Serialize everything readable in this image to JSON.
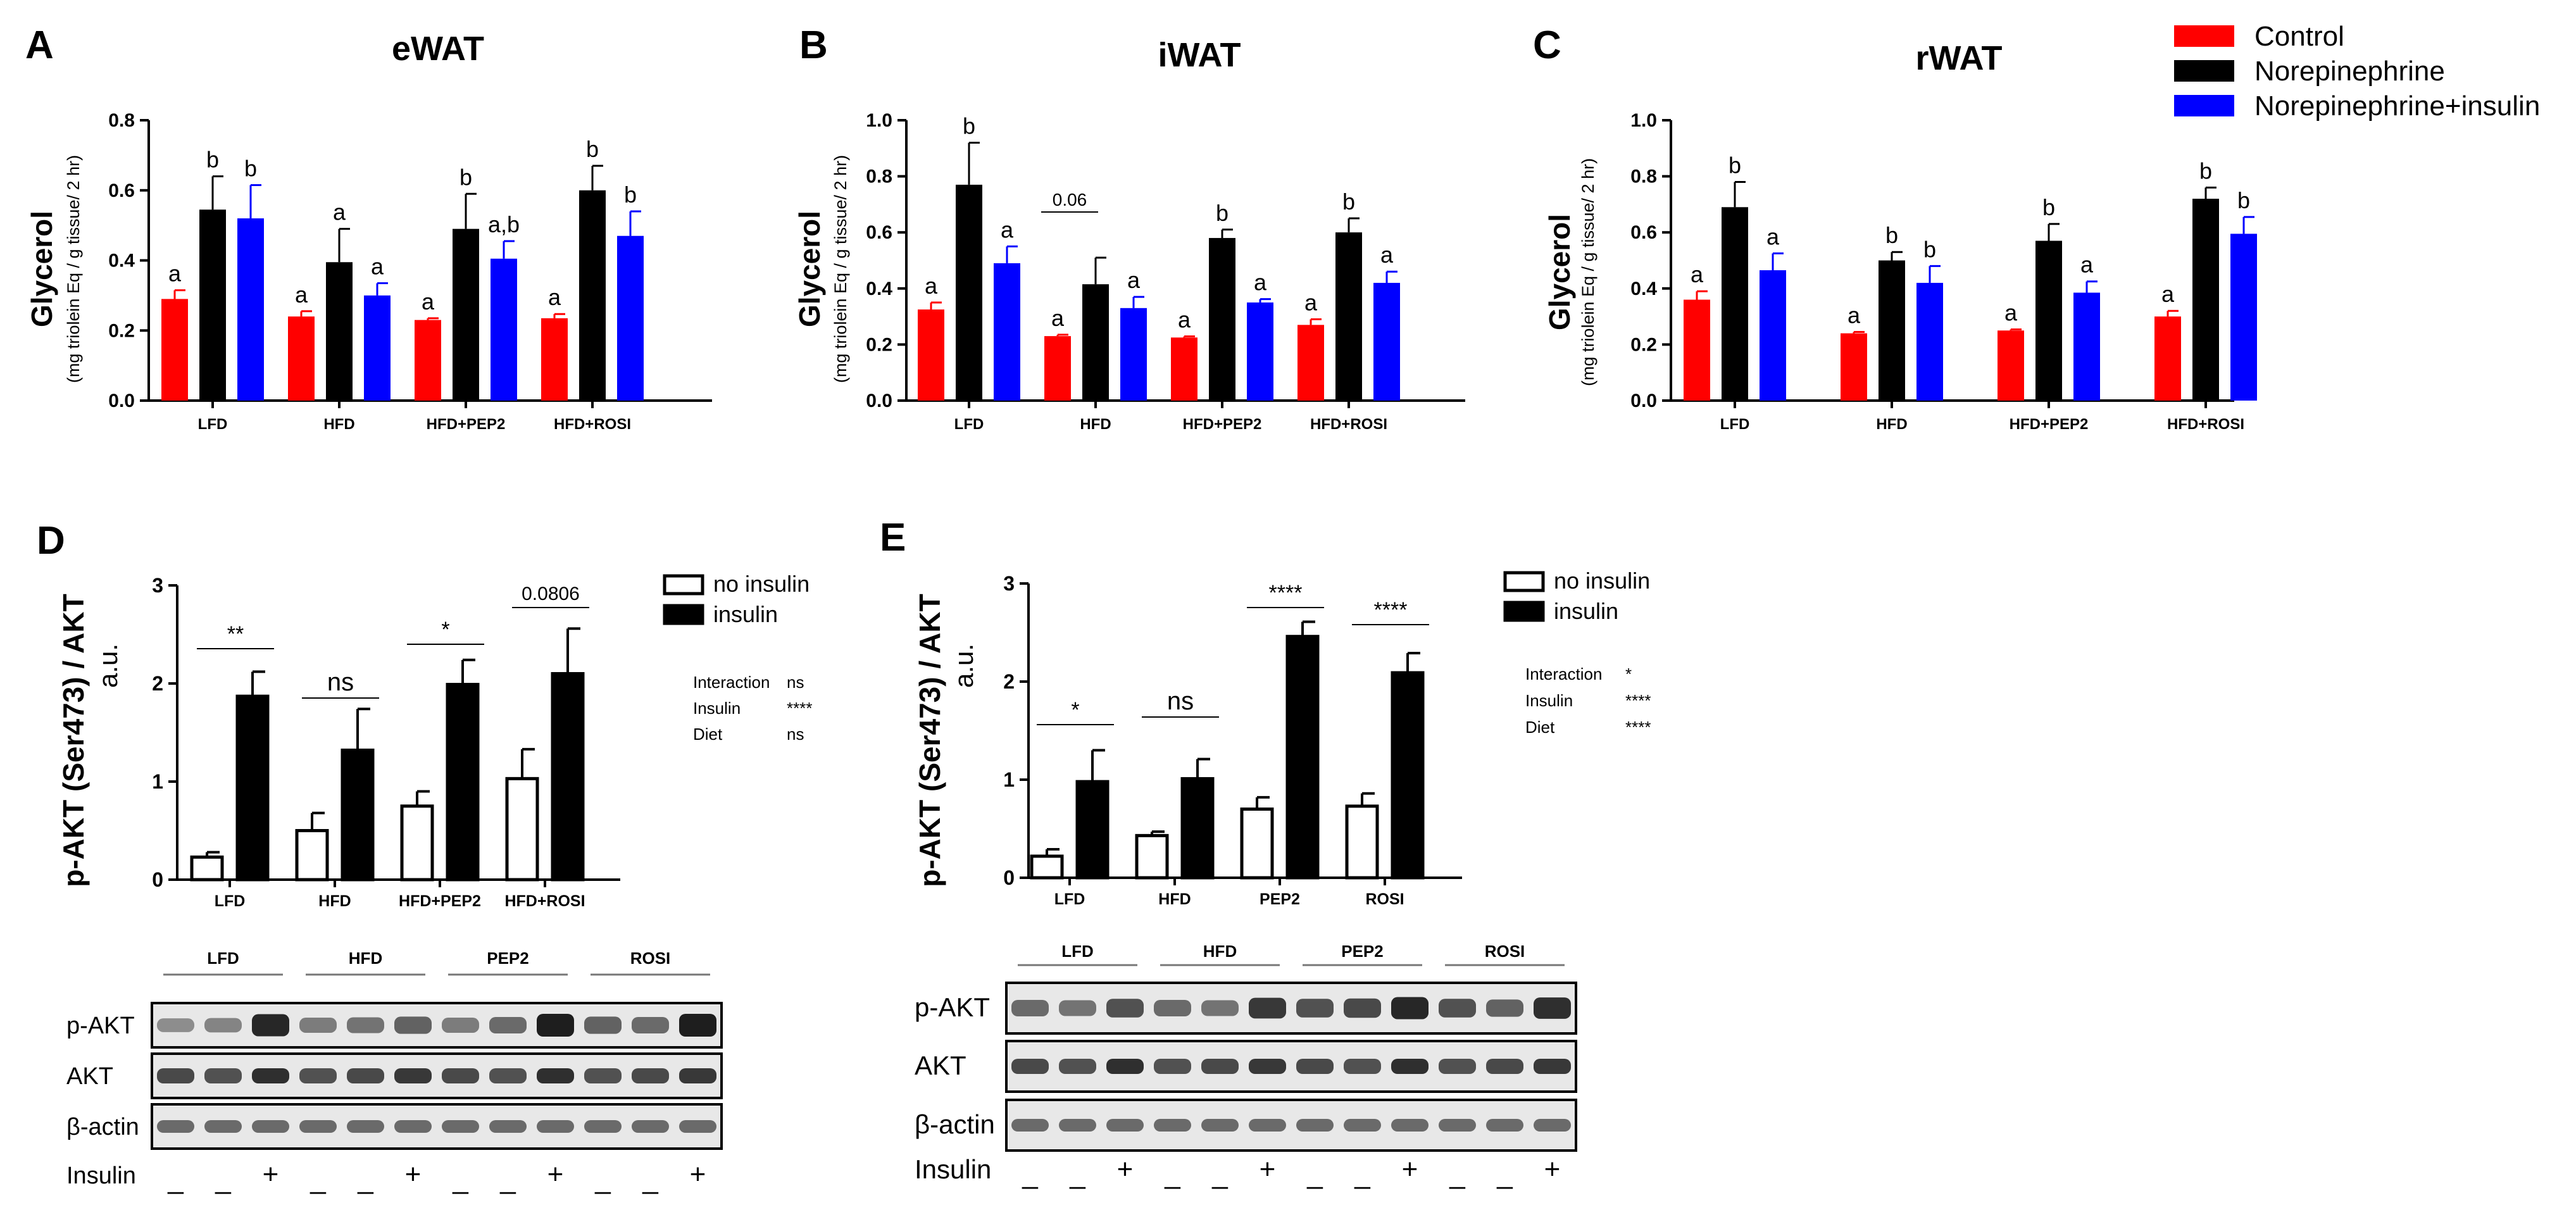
{
  "legend_top": {
    "items": [
      {
        "label": "Control",
        "color": "#ff0000"
      },
      {
        "label": "Norepinephrine",
        "color": "#000000"
      },
      {
        "label": "Norepinephrine+insulin",
        "color": "#0000ff"
      }
    ]
  },
  "chart_data": [
    {
      "panel": "A",
      "type": "bar",
      "title": "eWAT",
      "ylabel": "Glycerol",
      "ylabel_sub": "(mg triolein Eq / g tissue/ 2 hr)",
      "ylim": [
        0,
        0.8
      ],
      "yticks": [
        "0.0",
        "0.2",
        "0.4",
        "0.6",
        "0.8"
      ],
      "categories": [
        "LFD",
        "HFD",
        "HFD+PEP2",
        "HFD+ROSI"
      ],
      "series": [
        {
          "name": "Control",
          "color": "#ff0000",
          "values": [
            0.29,
            0.24,
            0.23,
            0.235
          ],
          "errors": [
            0.025,
            0.015,
            0.005,
            0.012
          ],
          "letters": [
            "a",
            "a",
            "a",
            "a"
          ]
        },
        {
          "name": "Norepinephrine",
          "color": "#000000",
          "values": [
            0.545,
            0.395,
            0.49,
            0.6
          ],
          "errors": [
            0.095,
            0.095,
            0.1,
            0.07
          ],
          "letters": [
            "b",
            "a",
            "b",
            "b"
          ]
        },
        {
          "name": "Norepinephrine+insulin",
          "color": "#0000ff",
          "values": [
            0.52,
            0.3,
            0.405,
            0.47
          ],
          "errors": [
            0.095,
            0.035,
            0.05,
            0.07
          ],
          "letters": [
            "b",
            "a",
            "a,b",
            "b"
          ]
        }
      ]
    },
    {
      "panel": "B",
      "type": "bar",
      "title": "iWAT",
      "ylabel": "Glycerol",
      "ylabel_sub": "(mg triolein Eq / g tissue/ 2 hr)",
      "ylim": [
        0,
        1.0
      ],
      "yticks": [
        "0.0",
        "0.2",
        "0.4",
        "0.6",
        "0.8",
        "1.0"
      ],
      "categories": [
        "LFD",
        "HFD",
        "HFD+PEP2",
        "HFD+ROSI"
      ],
      "annotation": {
        "text": "0.06",
        "group": 1
      },
      "series": [
        {
          "name": "Control",
          "color": "#ff0000",
          "values": [
            0.325,
            0.23,
            0.225,
            0.27
          ],
          "errors": [
            0.025,
            0.005,
            0.004,
            0.02
          ],
          "letters": [
            "a",
            "a",
            "a",
            "a"
          ]
        },
        {
          "name": "Norepinephrine",
          "color": "#000000",
          "values": [
            0.77,
            0.415,
            0.58,
            0.6
          ],
          "errors": [
            0.15,
            0.095,
            0.03,
            0.05
          ],
          "letters": [
            "b",
            "",
            "b",
            "b"
          ]
        },
        {
          "name": "Norepinephrine+insulin",
          "color": "#0000ff",
          "values": [
            0.49,
            0.33,
            0.35,
            0.42
          ],
          "errors": [
            0.06,
            0.04,
            0.012,
            0.04
          ],
          "letters": [
            "a",
            "a",
            "a",
            "a"
          ]
        }
      ]
    },
    {
      "panel": "C",
      "type": "bar",
      "title": "rWAT",
      "ylabel": "Glycerol",
      "ylabel_sub": "(mg triolein Eq / g tissue/ 2 hr)",
      "ylim": [
        0,
        1.0
      ],
      "yticks": [
        "0.0",
        "0.2",
        "0.4",
        "0.6",
        "0.8",
        "1.0"
      ],
      "categories": [
        "LFD",
        "HFD",
        "HFD+PEP2",
        "HFD+ROSI"
      ],
      "series": [
        {
          "name": "Control",
          "color": "#ff0000",
          "values": [
            0.36,
            0.24,
            0.25,
            0.3
          ],
          "errors": [
            0.03,
            0.005,
            0.004,
            0.02
          ],
          "letters": [
            "a",
            "a",
            "a",
            "a"
          ]
        },
        {
          "name": "Norepinephrine",
          "color": "#000000",
          "values": [
            0.69,
            0.5,
            0.57,
            0.72
          ],
          "errors": [
            0.09,
            0.03,
            0.06,
            0.04
          ],
          "letters": [
            "b",
            "b",
            "b",
            "b"
          ]
        },
        {
          "name": "Norepinephrine+insulin",
          "color": "#0000ff",
          "values": [
            0.465,
            0.42,
            0.385,
            0.595
          ],
          "errors": [
            0.06,
            0.06,
            0.04,
            0.06
          ],
          "letters": [
            "a",
            "b",
            "a",
            "b"
          ]
        }
      ]
    },
    {
      "panel": "D",
      "type": "bar",
      "ylabel": "p-AKT (Ser473) / AKT",
      "ylabel_sub": "a.u.",
      "ylim": [
        0,
        3
      ],
      "yticks": [
        "0",
        "1",
        "2",
        "3"
      ],
      "categories": [
        "LFD",
        "HFD",
        "HFD+PEP2",
        "HFD+ROSI"
      ],
      "series": [
        {
          "name": "no insulin",
          "fill": "#ffffff",
          "values": [
            0.23,
            0.5,
            0.75,
            1.03
          ],
          "errors": [
            0.05,
            0.18,
            0.15,
            0.3
          ]
        },
        {
          "name": "insulin",
          "fill": "#000000",
          "values": [
            1.87,
            1.32,
            1.99,
            2.1
          ],
          "errors": [
            0.25,
            0.42,
            0.25,
            0.46
          ]
        }
      ],
      "significance": [
        "**",
        "ns",
        "*",
        "0.0806"
      ],
      "stats": [
        {
          "label": "Interaction",
          "value": "ns"
        },
        {
          "label": "Insulin",
          "value": "****"
        },
        {
          "label": "Diet",
          "value": "ns"
        }
      ]
    },
    {
      "panel": "E",
      "type": "bar",
      "ylabel": "p-AKT (Ser473) / AKT",
      "ylabel_sub": "a.u.",
      "ylim": [
        0,
        3
      ],
      "yticks": [
        "0",
        "1",
        "2",
        "3"
      ],
      "categories": [
        "LFD",
        "HFD",
        "PEP2",
        "ROSI"
      ],
      "series": [
        {
          "name": "no insulin",
          "fill": "#ffffff",
          "values": [
            0.22,
            0.43,
            0.7,
            0.73
          ],
          "errors": [
            0.07,
            0.04,
            0.12,
            0.13
          ]
        },
        {
          "name": "insulin",
          "fill": "#000000",
          "values": [
            0.98,
            1.01,
            2.46,
            2.09
          ],
          "errors": [
            0.32,
            0.2,
            0.15,
            0.2
          ]
        }
      ],
      "significance": [
        "*",
        "ns",
        "****",
        "****"
      ],
      "stats": [
        {
          "label": "Interaction",
          "value": "*"
        },
        {
          "label": "Insulin",
          "value": "****"
        },
        {
          "label": "Diet",
          "value": "****"
        }
      ]
    }
  ],
  "blots": [
    {
      "panel": "D",
      "groups": [
        "LFD",
        "HFD",
        "PEP2",
        "ROSI"
      ],
      "rows": [
        "p-AKT",
        "AKT",
        "β-actin"
      ],
      "insulin_label": "Insulin",
      "insulin_marks": [
        "_",
        "_",
        "+",
        "_",
        "_",
        "+",
        "_",
        "_",
        "+",
        "_",
        "_",
        "+"
      ],
      "pakt_intensity": [
        0.35,
        0.4,
        0.95,
        0.45,
        0.5,
        0.6,
        0.45,
        0.55,
        1.0,
        0.6,
        0.55,
        1.0
      ]
    },
    {
      "panel": "E",
      "groups": [
        "LFD",
        "HFD",
        "PEP2",
        "ROSI"
      ],
      "rows": [
        "p-AKT",
        "AKT",
        "β-actin"
      ],
      "insulin_label": "Insulin",
      "insulin_marks": [
        "_",
        "_",
        "+",
        "_",
        "_",
        "+",
        "_",
        "_",
        "+",
        "_",
        "_",
        "+"
      ],
      "pakt_intensity": [
        0.55,
        0.5,
        0.7,
        0.55,
        0.5,
        0.85,
        0.7,
        0.75,
        0.95,
        0.7,
        0.6,
        0.9
      ]
    }
  ]
}
